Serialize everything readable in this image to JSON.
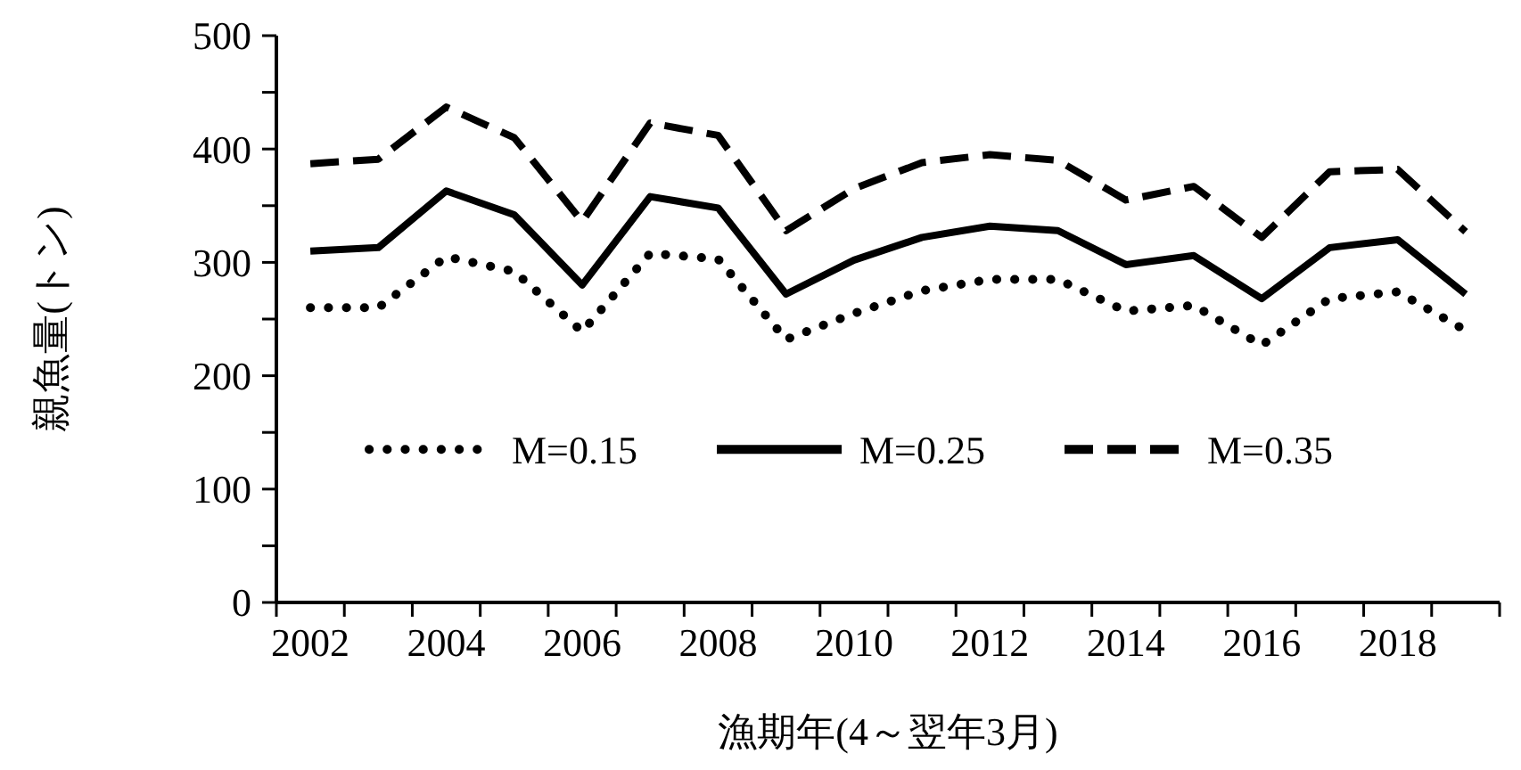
{
  "chart_data": {
    "type": "line",
    "xlabel": "漁期年(4～翌年3月)",
    "ylabel": "親魚量(トン)",
    "categories": [
      "2002",
      null,
      "2004",
      null,
      "2006",
      null,
      "2008",
      null,
      "2010",
      null,
      "2012",
      null,
      "2014",
      null,
      "2016",
      null,
      "2018",
      null
    ],
    "ylim": [
      0,
      500
    ],
    "yticks": [
      0,
      {
        "value": 50,
        "label": null
      },
      100,
      {
        "value": 150,
        "label": null
      },
      200,
      {
        "value": 250,
        "label": null
      },
      300,
      {
        "value": 350,
        "label": null
      },
      400,
      {
        "value": 450,
        "label": null
      },
      500
    ],
    "grid": false,
    "legend": "left",
    "series": [
      {
        "name": "M=0.15",
        "color": "#000000",
        "line_style": "dotted",
        "values": [
          260,
          260,
          305,
          292,
          239,
          308,
          303,
          232,
          255,
          275,
          285,
          285,
          257,
          262,
          227,
          268,
          274,
          240
        ]
      },
      {
        "name": "M=0.25",
        "color": "#000000",
        "line_style": "solid",
        "values": [
          310,
          313,
          363,
          342,
          280,
          358,
          348,
          272,
          302,
          322,
          332,
          328,
          298,
          306,
          268,
          313,
          320,
          272
        ]
      },
      {
        "name": "M=0.35",
        "color": "#000000",
        "line_style": "dashed",
        "values": [
          387,
          391,
          437,
          410,
          336,
          423,
          412,
          328,
          365,
          388,
          395,
          390,
          355,
          367,
          322,
          380,
          382,
          327
        ]
      }
    ]
  }
}
